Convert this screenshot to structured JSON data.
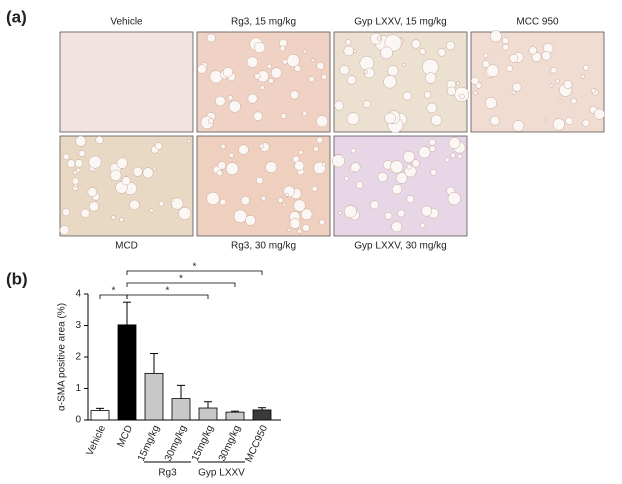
{
  "panel_a": {
    "label": "(a)",
    "images": [
      "Vehicle",
      "Rg3, 15 mg/kg",
      "Gyp LXXV, 15 mg/kg",
      "MCC 950",
      "MCD",
      "Rg3, 30 mg/kg",
      "Gyp LXXV, 30 mg/kg"
    ]
  },
  "chart_data": {
    "type": "bar",
    "panel_label": "(b)",
    "ylabel": "α-SMA positive area (%)",
    "categories": [
      "Vehicle",
      "MCD",
      "15mg/kg",
      "30mg/kg",
      "15mg/kg",
      "30mg/kg",
      "MCC950"
    ],
    "values": [
      0.3,
      3.02,
      1.48,
      0.68,
      0.38,
      0.25,
      0.32
    ],
    "errors": [
      0.07,
      0.72,
      0.63,
      0.42,
      0.2,
      0.03,
      0.07
    ],
    "colors": [
      "#ffffff",
      "#000000",
      "#c8c8c8",
      "#c8c8c8",
      "#c8c8c8",
      "#c8c8c8",
      "#3a3a3a"
    ],
    "group_labels": [
      "Rg3",
      "Gyp LXXV"
    ],
    "significance": [
      "*",
      "*",
      "*",
      "*"
    ],
    "ylim": [
      0,
      4
    ],
    "yticks": [
      0,
      1,
      2,
      3,
      4
    ]
  }
}
